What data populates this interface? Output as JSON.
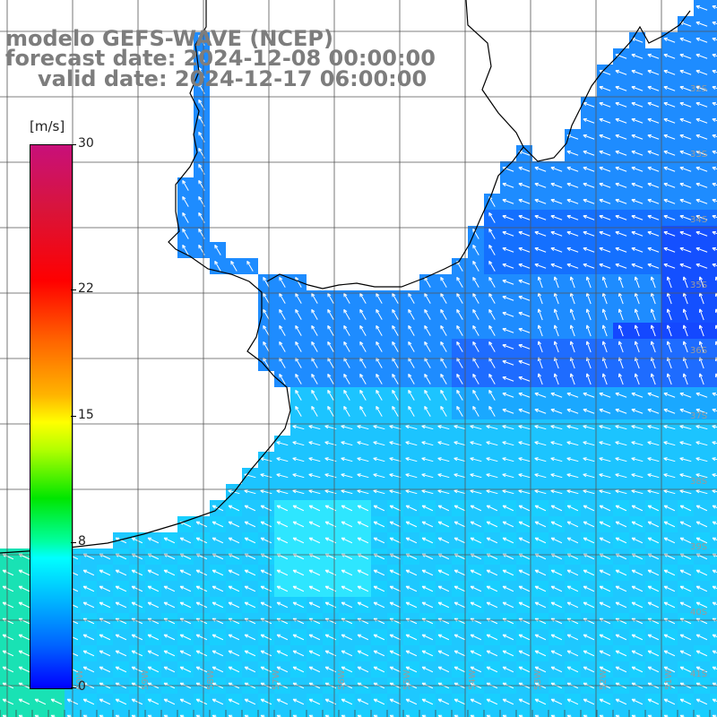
{
  "titles": {
    "line1": "modelo GEFS-WAVE (NCEP)",
    "line2": "forecast date: 2024-12-08 00:00:00",
    "line3": "valid date: 2024-12-17 06:00:00"
  },
  "colorbar": {
    "unit": "[m/s]",
    "ticks": [
      {
        "label": "30",
        "value": 30
      },
      {
        "label": "22",
        "value": 22
      },
      {
        "label": "15",
        "value": 15
      },
      {
        "label": "8",
        "value": 8
      },
      {
        "label": "0",
        "value": 0
      }
    ],
    "min": 0,
    "max": 30
  },
  "map": {
    "lat_labels": [
      "32S",
      "33S",
      "34S",
      "35S",
      "36S",
      "37S",
      "38S",
      "39S",
      "40S",
      "41S"
    ],
    "lon_labels": [
      "60W",
      "59W",
      "58W",
      "57W",
      "56W",
      "55W",
      "54W",
      "53W",
      "52W",
      "51W"
    ],
    "colors": {
      "land": "#ffffff",
      "grid": "#555555",
      "coast": "#000000",
      "arrow": "#ffffff",
      "strong_wind": "#0a3cff",
      "mid_wind": "#1e90ff",
      "weak_wind": "#14d2ff"
    }
  }
}
